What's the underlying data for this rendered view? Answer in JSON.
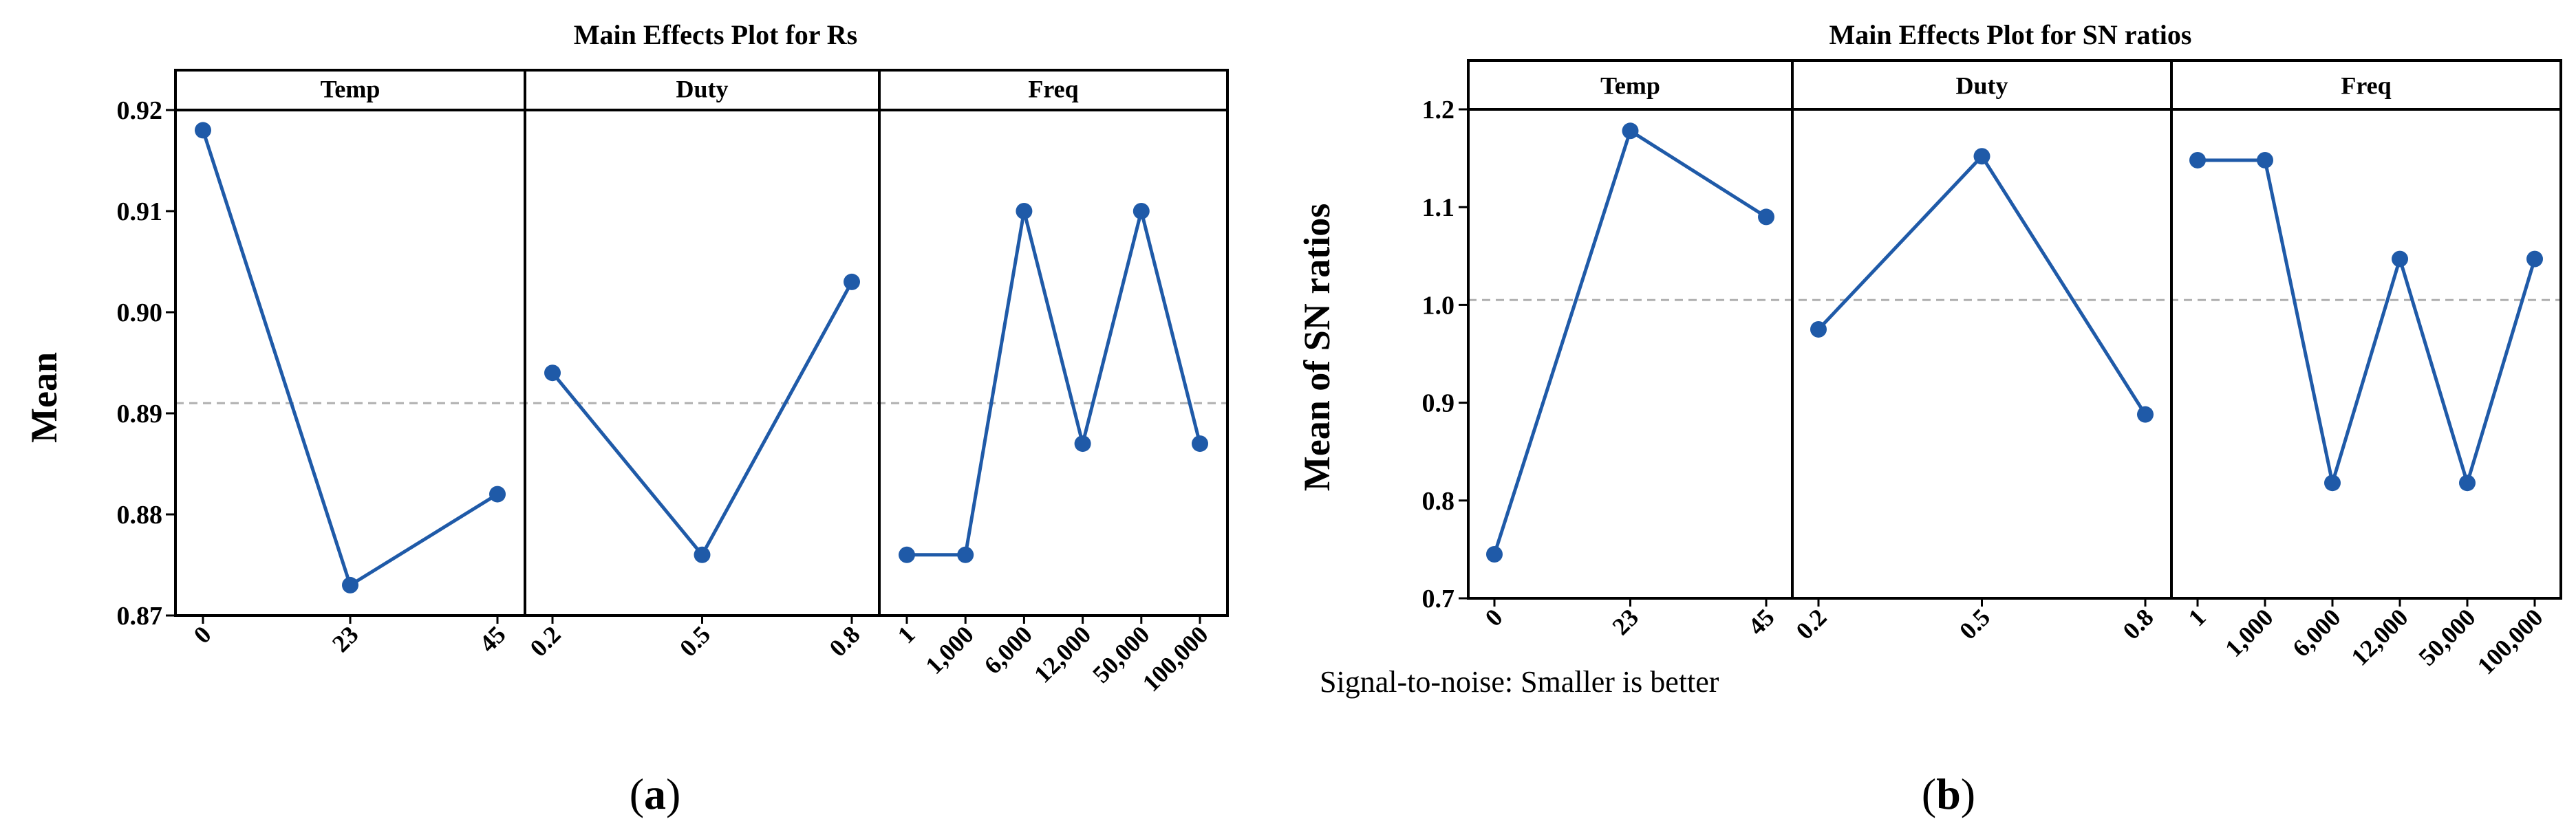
{
  "figure": {
    "captions": [
      "(a)",
      "(b)"
    ]
  },
  "style": {
    "line_color": "#1f5aa8",
    "marker_color": "#1f5aa8",
    "reference_line_color": "#b0b0b0",
    "frame_color": "#000000"
  },
  "chart_data": [
    {
      "type": "line",
      "title": "Main Effects Plot for Rs",
      "ylabel": "Mean",
      "xlabel": "",
      "caption_letter": "a",
      "ylim": [
        0.87,
        0.92
      ],
      "yticks": [
        "0.92",
        "0.91",
        "0.90",
        "0.89",
        "0.88",
        "0.87"
      ],
      "ytick_values": [
        0.92,
        0.91,
        0.9,
        0.89,
        0.88,
        0.87
      ],
      "reference_line": 0.891,
      "note": "",
      "panels": [
        {
          "name": "Temp",
          "categories": [
            "0",
            "23",
            "45"
          ],
          "values": [
            0.918,
            0.873,
            0.882
          ]
        },
        {
          "name": "Duty",
          "categories": [
            "0.2",
            "0.5",
            "0.8"
          ],
          "values": [
            0.894,
            0.876,
            0.903
          ]
        },
        {
          "name": "Freq",
          "categories": [
            "1",
            "1,000",
            "6,000",
            "12,000",
            "50,000",
            "100,000"
          ],
          "values": [
            0.876,
            0.876,
            0.91,
            0.887,
            0.91,
            0.887
          ]
        }
      ]
    },
    {
      "type": "line",
      "title": "Main Effects Plot for SN ratios",
      "ylabel": "Mean of SN ratios",
      "xlabel": "",
      "caption_letter": "b",
      "ylim": [
        0.7,
        1.2
      ],
      "yticks": [
        "1.2",
        "1.1",
        "1.0",
        "0.9",
        "0.8",
        "0.7"
      ],
      "ytick_values": [
        1.2,
        1.1,
        1.0,
        0.9,
        0.8,
        0.7
      ],
      "reference_line": 1.005,
      "note": "Signal-to-noise: Smaller is better",
      "panels": [
        {
          "name": "Temp",
          "categories": [
            "0",
            "23",
            "45"
          ],
          "values": [
            0.745,
            1.178,
            1.09
          ]
        },
        {
          "name": "Duty",
          "categories": [
            "0.2",
            "0.5",
            "0.8"
          ],
          "values": [
            0.975,
            1.152,
            0.888
          ]
        },
        {
          "name": "Freq",
          "categories": [
            "1",
            "1,000",
            "6,000",
            "12,000",
            "50,000",
            "100,000"
          ],
          "values": [
            1.148,
            1.148,
            0.818,
            1.047,
            0.818,
            1.047
          ]
        }
      ]
    }
  ]
}
